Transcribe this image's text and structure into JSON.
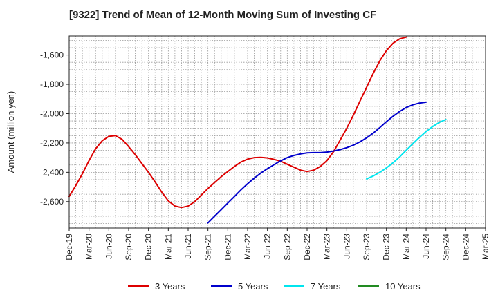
{
  "chart_data": {
    "type": "line",
    "title": "[9322]  Trend of Mean of 12-Month Moving Sum of Investing CF",
    "xlabel": "",
    "ylabel": "Amount (million yen)",
    "ylim": [
      -2780,
      -1470
    ],
    "yticks": [
      -2600,
      -2400,
      -2200,
      -2000,
      -1800,
      -1600
    ],
    "ytick_labels": [
      "-2,600",
      "-2,400",
      "-2,200",
      "-2,000",
      "-1,800",
      "-1,600"
    ],
    "x_start": "Dec-19",
    "x_end": "Mar-25",
    "xtick_labels": [
      "Dec-19",
      "Mar-20",
      "Jun-20",
      "Sep-20",
      "Dec-20",
      "Mar-21",
      "Jun-21",
      "Sep-21",
      "Dec-21",
      "Mar-22",
      "Jun-22",
      "Sep-22",
      "Dec-22",
      "Mar-23",
      "Jun-23",
      "Sep-23",
      "Dec-23",
      "Mar-24",
      "Jun-24",
      "Sep-24",
      "Dec-24",
      "Mar-25"
    ],
    "grid": true,
    "legend_position": "bottom",
    "series": [
      {
        "name": "3 Years",
        "color": "#dd0000",
        "start_month": 0,
        "values": [
          -2565,
          -2490,
          -2410,
          -2320,
          -2240,
          -2185,
          -2155,
          -2150,
          -2175,
          -2225,
          -2280,
          -2340,
          -2400,
          -2465,
          -2535,
          -2595,
          -2630,
          -2640,
          -2630,
          -2600,
          -2555,
          -2510,
          -2470,
          -2430,
          -2395,
          -2360,
          -2330,
          -2310,
          -2300,
          -2298,
          -2302,
          -2312,
          -2325,
          -2345,
          -2365,
          -2385,
          -2395,
          -2385,
          -2360,
          -2320,
          -2260,
          -2180,
          -2100,
          -2010,
          -1915,
          -1820,
          -1725,
          -1640,
          -1570,
          -1520,
          -1490,
          -1478
        ]
      },
      {
        "name": "5 Years",
        "color": "#0000cc",
        "start_month": 21,
        "values": [
          -2745,
          -2700,
          -2655,
          -2610,
          -2565,
          -2520,
          -2478,
          -2440,
          -2405,
          -2375,
          -2348,
          -2322,
          -2300,
          -2285,
          -2275,
          -2268,
          -2266,
          -2266,
          -2262,
          -2255,
          -2245,
          -2232,
          -2215,
          -2193,
          -2165,
          -2133,
          -2095,
          -2055,
          -2018,
          -1985,
          -1958,
          -1940,
          -1928,
          -1922
        ]
      },
      {
        "name": "7 Years",
        "color": "#00e5ee",
        "start_month": 45,
        "values": [
          -2445,
          -2425,
          -2400,
          -2370,
          -2335,
          -2295,
          -2250,
          -2205,
          -2162,
          -2122,
          -2088,
          -2060,
          -2040
        ]
      },
      {
        "name": "10 Years",
        "color": "#228b22",
        "start_month": 0,
        "values": []
      }
    ]
  }
}
